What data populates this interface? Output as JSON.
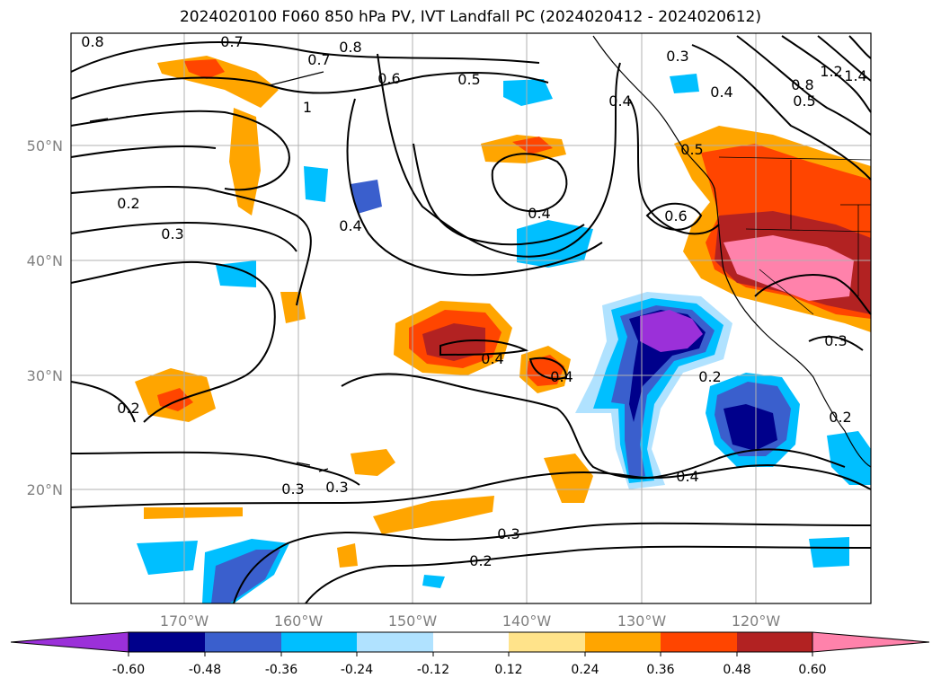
{
  "title": "2024020100 F060 850 hPa PV, IVT Landfall PC (2024020412 - 2024020612)",
  "lat_labels": [
    "50°N",
    "40°N",
    "30°N",
    "20°N"
  ],
  "lon_labels": [
    "170°W",
    "160°W",
    "150°W",
    "140°W",
    "130°W",
    "120°W"
  ],
  "contour_labels": [
    "0.8",
    "0.7",
    "0.8",
    "0.7",
    "1",
    "0.6",
    "0.5",
    "0.3",
    "0.4",
    "1.2",
    "1.4",
    "0.8",
    "0.5",
    "0.2",
    "0.3",
    "0.4",
    "0.4",
    "0.6",
    "0.5",
    "0.4",
    "0.4",
    "0.2",
    "0.2",
    "0.3",
    "0.3",
    "0.2",
    "0.4",
    "0.3",
    "0.2",
    "0.3",
    "0.4"
  ],
  "colorbar": {
    "ticks": [
      "-0.60",
      "-0.48",
      "-0.36",
      "-0.24",
      "-0.12",
      "0.12",
      "0.24",
      "0.36",
      "0.48",
      "0.60"
    ],
    "colors": [
      "#9b30d9",
      "#00008b",
      "#3a5fcd",
      "#00bfff",
      "#b0e2ff",
      "#ffffff",
      "#ffe38a",
      "#ffa500",
      "#ff4500",
      "#b22222",
      "#ff82ab"
    ]
  }
}
